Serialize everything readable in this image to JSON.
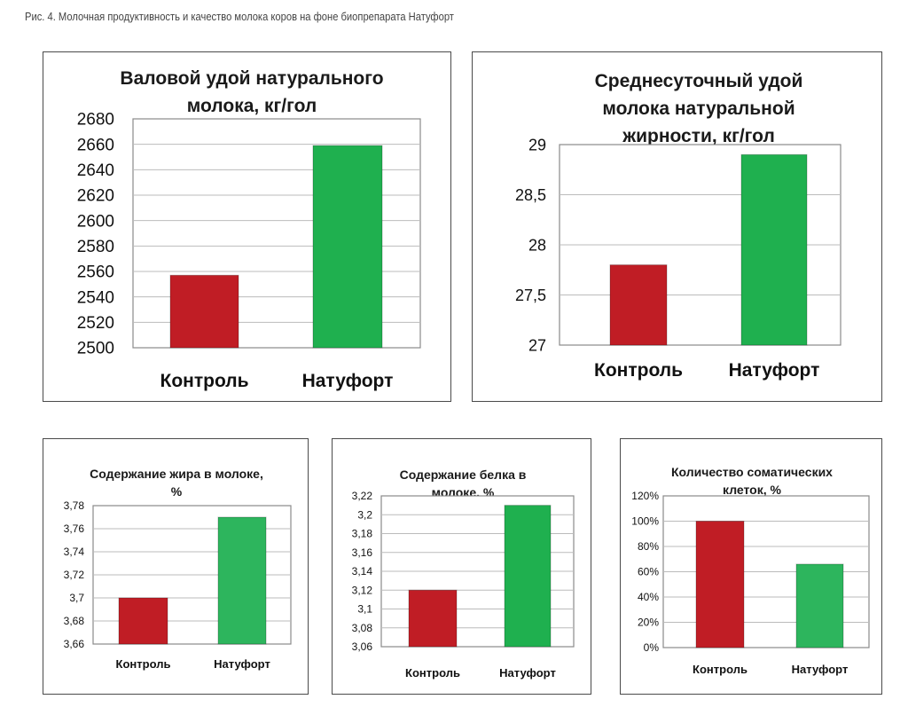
{
  "figure_caption": "Рис. 4. Молочная продуктивность и качество молока коров на фоне биопрепарата Натуфорт",
  "colors": {
    "control": "#c01d25",
    "natufort": "#1fb04f",
    "natufort_light": "#2db55d",
    "grid": "#bbbbbb"
  },
  "chart_data": [
    {
      "type": "bar",
      "title": "Валовой удой натурального молока, кг/гол",
      "title_lines": [
        "Валовой удой натурального",
        "молока, кг/гол"
      ],
      "categories": [
        "Контроль",
        "Натуфорт"
      ],
      "values": [
        2557,
        2659
      ],
      "ylim": [
        2500,
        2680
      ],
      "yticks": [
        "2680",
        "2660",
        "2640",
        "2620",
        "2600",
        "2580",
        "2560",
        "2540",
        "2520",
        "2500"
      ],
      "xlabel": "",
      "ylabel": ""
    },
    {
      "type": "bar",
      "title": "Среднесуточный удой молока натуральной жирности, кг/гол",
      "title_lines": [
        "Среднесуточный удой",
        "молока натуральной",
        "жирности, кг/гол"
      ],
      "categories": [
        "Контроль",
        "Натуфорт"
      ],
      "values": [
        27.8,
        28.9
      ],
      "ylim": [
        27,
        29
      ],
      "yticks": [
        "29",
        "28,5",
        "28",
        "27,5",
        "27"
      ],
      "xlabel": "",
      "ylabel": ""
    },
    {
      "type": "bar",
      "title": "Содержание жира в молоке, %",
      "title_lines": [
        "Содержание жира в молоке,",
        "%"
      ],
      "categories": [
        "Контроль",
        "Натуфорт"
      ],
      "values": [
        3.7,
        3.77
      ],
      "ylim": [
        3.66,
        3.78
      ],
      "yticks": [
        "3,78",
        "3,76",
        "3,74",
        "3,72",
        "3,7",
        "3,68",
        "3,66"
      ],
      "xlabel": "",
      "ylabel": ""
    },
    {
      "type": "bar",
      "title": "Содержание белка в молоке, %",
      "title_lines": [
        "Содержание белка в",
        "молоке, %"
      ],
      "categories": [
        "Контроль",
        "Натуфорт"
      ],
      "values": [
        3.12,
        3.21
      ],
      "ylim": [
        3.06,
        3.22
      ],
      "yticks": [
        "3,22",
        "3,2",
        "3,18",
        "3,16",
        "3,14",
        "3,12",
        "3,1",
        "3,08",
        "3,06"
      ],
      "xlabel": "",
      "ylabel": ""
    },
    {
      "type": "bar",
      "title": "Количество соматических клеток, %",
      "title_lines": [
        "Количество соматических",
        "клеток, %"
      ],
      "categories": [
        "Контроль",
        "Натуфорт"
      ],
      "values": [
        100,
        66
      ],
      "ylim": [
        0,
        120
      ],
      "yticks": [
        "120%",
        "100%",
        "80%",
        "60%",
        "40%",
        "20%",
        "0%"
      ],
      "xlabel": "",
      "ylabel": ""
    }
  ]
}
